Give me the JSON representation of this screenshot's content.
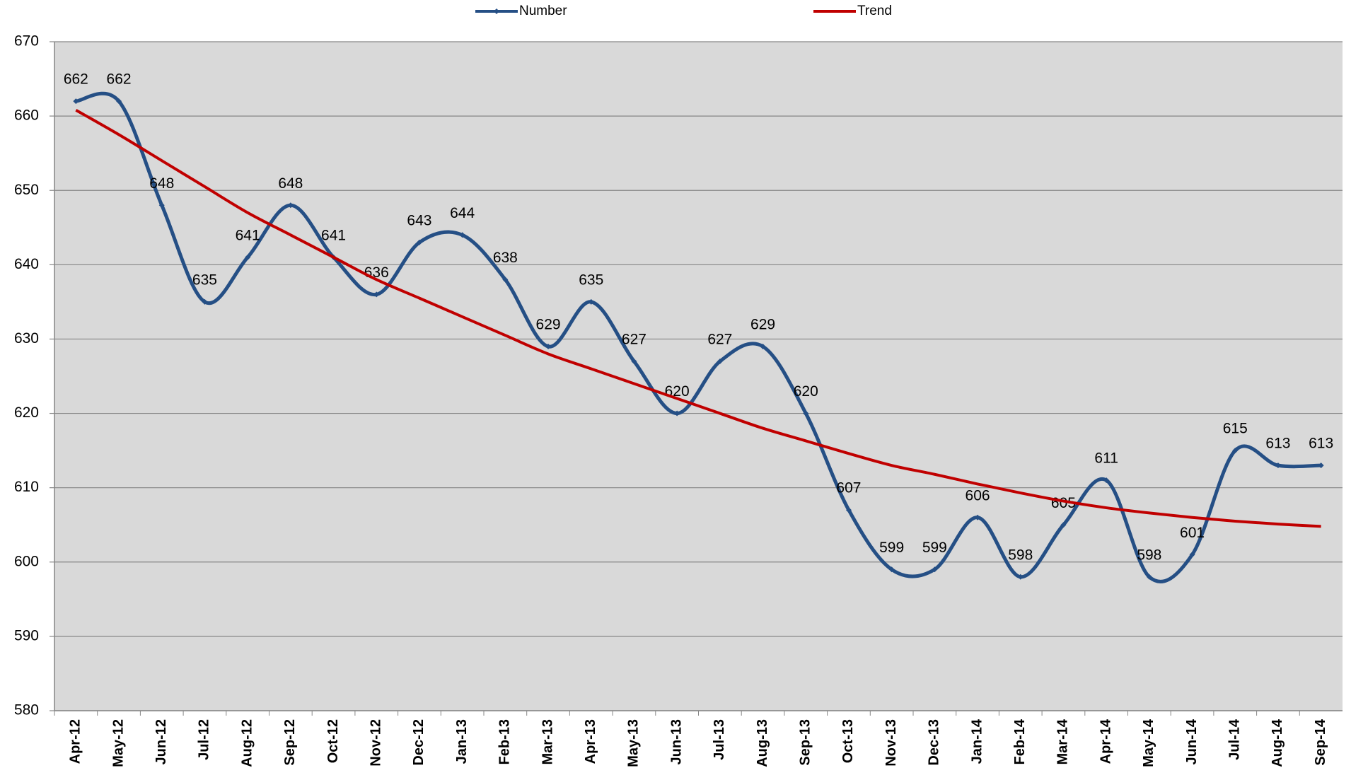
{
  "chart_data": {
    "type": "line",
    "categories": [
      "Apr-12",
      "May-12",
      "Jun-12",
      "Jul-12",
      "Aug-12",
      "Sep-12",
      "Oct-12",
      "Nov-12",
      "Dec-12",
      "Jan-13",
      "Feb-13",
      "Mar-13",
      "Apr-13",
      "May-13",
      "Jun-13",
      "Jul-13",
      "Aug-13",
      "Sep-13",
      "Oct-13",
      "Nov-13",
      "Dec-13",
      "Jan-14",
      "Feb-14",
      "Mar-14",
      "Apr-14",
      "May-14",
      "Jun-14",
      "Jul-14",
      "Aug-14",
      "Sep-14"
    ],
    "series": [
      {
        "name": "Number",
        "color": "#254f85",
        "values": [
          662,
          662,
          648,
          635,
          641,
          648,
          641,
          636,
          643,
          644,
          638,
          629,
          635,
          627,
          620,
          627,
          629,
          620,
          607,
          599,
          599,
          606,
          598,
          605,
          611,
          598,
          601,
          615,
          613,
          613
        ]
      },
      {
        "name": "Trend",
        "color": "#c00000",
        "values": [
          660.8,
          657.5,
          654,
          650.5,
          647,
          644,
          641,
          638,
          635.5,
          633,
          630.5,
          628,
          626,
          624,
          622,
          620,
          618,
          616.3,
          614.6,
          613,
          611.8,
          610.5,
          609.3,
          608.2,
          607.3,
          606.6,
          606,
          605.5,
          605.1,
          604.8
        ]
      }
    ],
    "ylim": [
      580,
      670
    ],
    "yticks": [
      580,
      590,
      600,
      610,
      620,
      630,
      640,
      650,
      660,
      670
    ],
    "grid": true,
    "legend": "top"
  }
}
